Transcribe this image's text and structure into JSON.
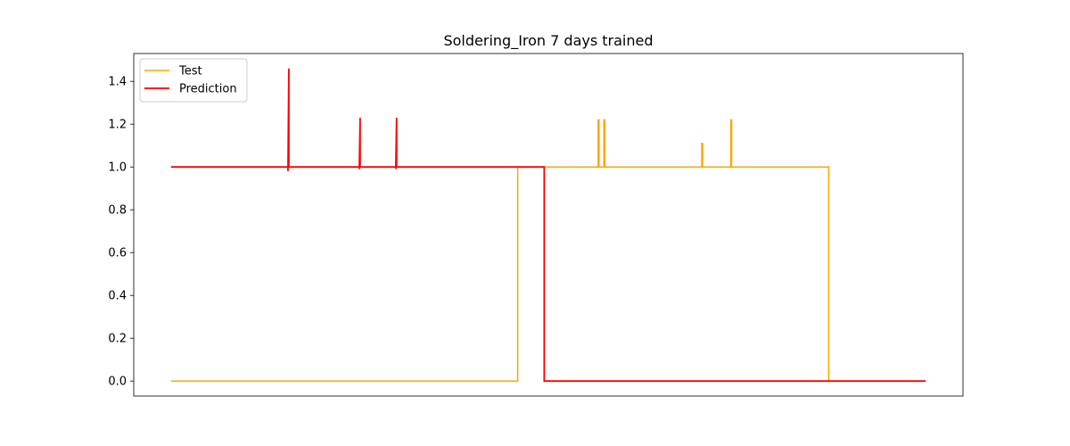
{
  "chart_data": {
    "type": "line",
    "title": "Soldering_Iron 7 days trained",
    "xlabel": "",
    "ylabel": "",
    "x_ticks_shown": false,
    "xlim": [
      0,
      1000
    ],
    "ylim": [
      -0.07,
      1.53
    ],
    "yticks": [
      0.0,
      0.2,
      0.4,
      0.6,
      0.8,
      1.0,
      1.2,
      1.4
    ],
    "ytick_labels": [
      "0.0",
      "0.2",
      "0.4",
      "0.6",
      "0.8",
      "1.0",
      "1.2",
      "1.4"
    ],
    "grid": false,
    "legend_position": "top-left",
    "series": [
      {
        "name": "Test",
        "color": "#ffa500",
        "x": [
          45,
          463,
          463,
          560,
          560,
          561,
          561,
          567,
          567,
          568,
          568,
          685,
          685,
          686,
          686,
          720,
          720,
          721,
          721,
          838,
          838,
          955
        ],
        "y": [
          0,
          0,
          1,
          1,
          1.22,
          1.22,
          1,
          1,
          1.22,
          1.22,
          1,
          1,
          1.11,
          1.11,
          1,
          1,
          1.22,
          1.22,
          1,
          1,
          0,
          0
        ]
      },
      {
        "name": "Prediction",
        "color": "#ff0000",
        "x": [
          45,
          186,
          186,
          187,
          187,
          272,
          272,
          273,
          273,
          316,
          316,
          317,
          317,
          495,
          495,
          955
        ],
        "y": [
          1,
          1,
          0.98,
          1.46,
          1,
          1,
          0.99,
          1.23,
          1,
          1,
          0.99,
          1.23,
          1,
          1,
          0,
          0
        ]
      }
    ]
  }
}
